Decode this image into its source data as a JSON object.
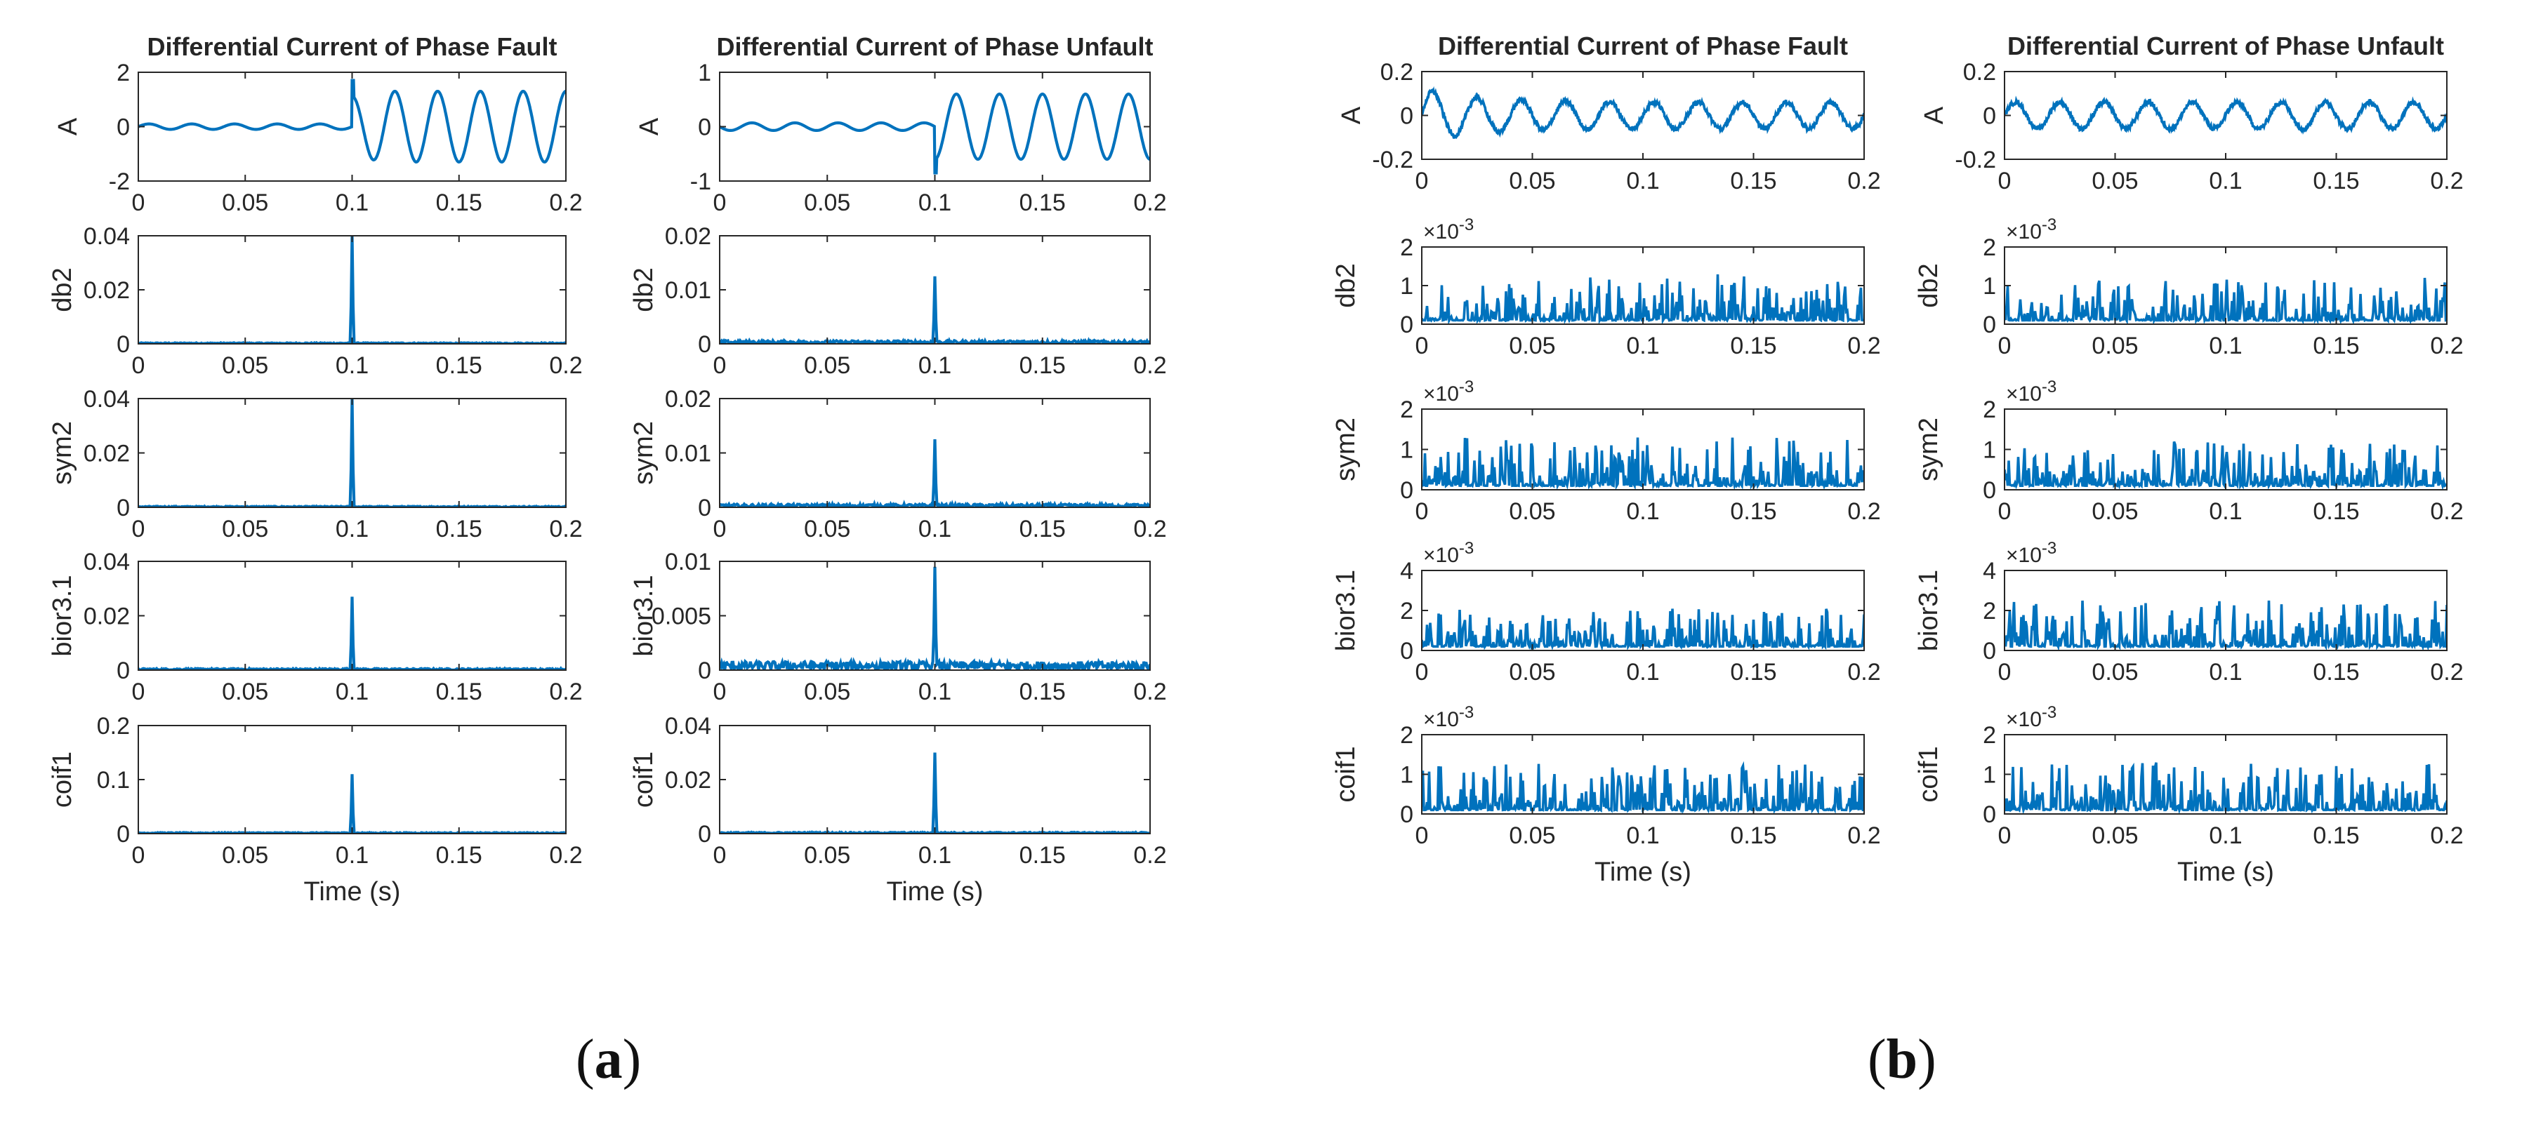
{
  "panel_labels": {
    "a": "a",
    "b": "b"
  },
  "line_color": "#0072BD",
  "chart_data": [
    {
      "panel": "a",
      "type": "line",
      "title": "Differential Current of Phase Fault",
      "ylabel": "A",
      "xlabel": "",
      "xlim": [
        0,
        0.2
      ],
      "ylim": [
        -2,
        2
      ],
      "yticks": [
        "-2",
        "0",
        "2"
      ],
      "xticks": [
        "0",
        "0.05",
        "0.1",
        "0.15",
        "0.2"
      ],
      "exponent": "",
      "signal": "sine-fault",
      "amplitude_pre": 0.1,
      "amplitude_post": 1.3,
      "event_x": 0.1,
      "peak_y": 1.7
    },
    {
      "panel": "a",
      "type": "line",
      "title": "",
      "ylabel": "db2",
      "xlabel": "",
      "xlim": [
        0,
        0.2
      ],
      "ylim": [
        0,
        0.04
      ],
      "yticks": [
        "0",
        "0.02",
        "0.04"
      ],
      "xticks": [
        "0",
        "0.05",
        "0.1",
        "0.15",
        "0.2"
      ],
      "exponent": "",
      "signal": "spike",
      "spike_x": 0.1,
      "spike_y": 0.04,
      "noise": 0.0004
    },
    {
      "panel": "a",
      "type": "line",
      "title": "",
      "ylabel": "sym2",
      "xlabel": "",
      "xlim": [
        0,
        0.2
      ],
      "ylim": [
        0,
        0.04
      ],
      "yticks": [
        "0",
        "0.02",
        "0.04"
      ],
      "xticks": [
        "0",
        "0.05",
        "0.1",
        "0.15",
        "0.2"
      ],
      "exponent": "",
      "signal": "spike",
      "spike_x": 0.1,
      "spike_y": 0.04,
      "noise": 0.0004
    },
    {
      "panel": "a",
      "type": "line",
      "title": "",
      "ylabel": "bior3.1",
      "xlabel": "",
      "xlim": [
        0,
        0.2
      ],
      "ylim": [
        0,
        0.04
      ],
      "yticks": [
        "0",
        "0.02",
        "0.04"
      ],
      "xticks": [
        "0",
        "0.05",
        "0.1",
        "0.15",
        "0.2"
      ],
      "exponent": "",
      "signal": "spike",
      "spike_x": 0.1,
      "spike_y": 0.027,
      "noise": 0.0006
    },
    {
      "panel": "a",
      "type": "line",
      "title": "",
      "ylabel": "coif1",
      "xlabel": "Time (s)",
      "xlim": [
        0,
        0.2
      ],
      "ylim": [
        0,
        0.2
      ],
      "yticks": [
        "0",
        "0.1",
        "0.2"
      ],
      "xticks": [
        "0",
        "0.05",
        "0.1",
        "0.15",
        "0.2"
      ],
      "exponent": "",
      "signal": "spike",
      "spike_x": 0.1,
      "spike_y": 0.11,
      "noise": 0.002
    },
    {
      "panel": "a",
      "type": "line",
      "title": "Differential Current of Phase Unfault",
      "ylabel": "A",
      "xlabel": "",
      "xlim": [
        0,
        0.2
      ],
      "ylim": [
        -1,
        1
      ],
      "yticks": [
        "-1",
        "0",
        "1"
      ],
      "xticks": [
        "0",
        "0.05",
        "0.1",
        "0.15",
        "0.2"
      ],
      "exponent": "",
      "signal": "sine-unfault",
      "amplitude_pre": 0.07,
      "amplitude_post": 0.6,
      "event_x": 0.1,
      "peak_y": -0.85
    },
    {
      "panel": "a",
      "type": "line",
      "title": "",
      "ylabel": "db2",
      "xlabel": "",
      "xlim": [
        0,
        0.2
      ],
      "ylim": [
        0,
        0.02
      ],
      "yticks": [
        "0",
        "0.01",
        "0.02"
      ],
      "xticks": [
        "0",
        "0.05",
        "0.1",
        "0.15",
        "0.2"
      ],
      "exponent": "",
      "signal": "spike",
      "spike_x": 0.1,
      "spike_y": 0.0125,
      "noise": 0.0006
    },
    {
      "panel": "a",
      "type": "line",
      "title": "",
      "ylabel": "sym2",
      "xlabel": "",
      "xlim": [
        0,
        0.2
      ],
      "ylim": [
        0,
        0.02
      ],
      "yticks": [
        "0",
        "0.01",
        "0.02"
      ],
      "xticks": [
        "0",
        "0.05",
        "0.1",
        "0.15",
        "0.2"
      ],
      "exponent": "",
      "signal": "spike",
      "spike_x": 0.1,
      "spike_y": 0.0125,
      "noise": 0.0006
    },
    {
      "panel": "a",
      "type": "line",
      "title": "",
      "ylabel": "bior3.1",
      "xlabel": "",
      "xlim": [
        0,
        0.2
      ],
      "ylim": [
        0,
        0.01
      ],
      "yticks": [
        "0",
        "0.005",
        "0.01"
      ],
      "xticks": [
        "0",
        "0.05",
        "0.1",
        "0.15",
        "0.2"
      ],
      "exponent": "",
      "signal": "spike",
      "spike_x": 0.1,
      "spike_y": 0.0095,
      "noise": 0.0008
    },
    {
      "panel": "a",
      "type": "line",
      "title": "",
      "ylabel": "coif1",
      "xlabel": "Time (s)",
      "xlim": [
        0,
        0.2
      ],
      "ylim": [
        0,
        0.04
      ],
      "yticks": [
        "0",
        "0.02",
        "0.04"
      ],
      "xticks": [
        "0",
        "0.05",
        "0.1",
        "0.15",
        "0.2"
      ],
      "exponent": "",
      "signal": "spike",
      "spike_x": 0.1,
      "spike_y": 0.03,
      "noise": 0.0005
    },
    {
      "panel": "b",
      "type": "line",
      "title": "Differential Current of Phase Fault",
      "ylabel": "A",
      "xlabel": "",
      "xlim": [
        0,
        0.2
      ],
      "ylim": [
        -0.2,
        0.2
      ],
      "yticks": [
        "-0.2",
        "0",
        "0.2"
      ],
      "xticks": [
        "0",
        "0.05",
        "0.1",
        "0.15",
        "0.2"
      ],
      "exponent": "",
      "signal": "sine-small",
      "amplitude": 0.06,
      "first_peak_y": 0.12
    },
    {
      "panel": "b",
      "type": "line",
      "title": "",
      "ylabel": "db2",
      "xlabel": "",
      "xlim": [
        0,
        0.2
      ],
      "ylim": [
        0,
        0.002
      ],
      "yticks": [
        "0",
        "1",
        "2"
      ],
      "xticks": [
        "0",
        "0.05",
        "0.1",
        "0.15",
        "0.2"
      ],
      "exponent": "-3",
      "signal": "noise",
      "noise_base": 0.0001,
      "noise_max": 0.0013
    },
    {
      "panel": "b",
      "type": "line",
      "title": "",
      "ylabel": "sym2",
      "xlabel": "",
      "xlim": [
        0,
        0.2
      ],
      "ylim": [
        0,
        0.002
      ],
      "yticks": [
        "0",
        "1",
        "2"
      ],
      "xticks": [
        "0",
        "0.05",
        "0.1",
        "0.15",
        "0.2"
      ],
      "exponent": "-3",
      "signal": "noise",
      "noise_base": 0.0001,
      "noise_max": 0.0013
    },
    {
      "panel": "b",
      "type": "line",
      "title": "",
      "ylabel": "bior3.1",
      "xlabel": "",
      "xlim": [
        0,
        0.2
      ],
      "ylim": [
        0,
        0.004
      ],
      "yticks": [
        "0",
        "2",
        "4"
      ],
      "xticks": [
        "0",
        "0.05",
        "0.1",
        "0.15",
        "0.2"
      ],
      "exponent": "-3",
      "signal": "noise",
      "noise_base": 0.0002,
      "noise_max": 0.0021
    },
    {
      "panel": "b",
      "type": "line",
      "title": "",
      "ylabel": "coif1",
      "xlabel": "Time (s)",
      "xlim": [
        0,
        0.2
      ],
      "ylim": [
        0,
        0.002
      ],
      "yticks": [
        "0",
        "1",
        "2"
      ],
      "xticks": [
        "0",
        "0.05",
        "0.1",
        "0.15",
        "0.2"
      ],
      "exponent": "-3",
      "signal": "noise",
      "noise_base": 0.0001,
      "noise_max": 0.0013
    },
    {
      "panel": "b",
      "type": "line",
      "title": "Differential Current of Phase Unfault",
      "ylabel": "A",
      "xlabel": "",
      "xlim": [
        0,
        0.2
      ],
      "ylim": [
        -0.2,
        0.2
      ],
      "yticks": [
        "-0.2",
        "0",
        "0.2"
      ],
      "xticks": [
        "0",
        "0.05",
        "0.1",
        "0.15",
        "0.2"
      ],
      "exponent": "",
      "signal": "sine-small",
      "amplitude": 0.06,
      "first_peak_y": 0.06
    },
    {
      "panel": "b",
      "type": "line",
      "title": "",
      "ylabel": "db2",
      "xlabel": "",
      "xlim": [
        0,
        0.2
      ],
      "ylim": [
        0,
        0.002
      ],
      "yticks": [
        "0",
        "1",
        "2"
      ],
      "xticks": [
        "0",
        "0.05",
        "0.1",
        "0.15",
        "0.2"
      ],
      "exponent": "-3",
      "signal": "noise",
      "noise_base": 0.0001,
      "noise_max": 0.0012
    },
    {
      "panel": "b",
      "type": "line",
      "title": "",
      "ylabel": "sym2",
      "xlabel": "",
      "xlim": [
        0,
        0.2
      ],
      "ylim": [
        0,
        0.002
      ],
      "yticks": [
        "0",
        "1",
        "2"
      ],
      "xticks": [
        "0",
        "0.05",
        "0.1",
        "0.15",
        "0.2"
      ],
      "exponent": "-3",
      "signal": "noise",
      "noise_base": 0.0001,
      "noise_max": 0.0012
    },
    {
      "panel": "b",
      "type": "line",
      "title": "",
      "ylabel": "bior3.1",
      "xlabel": "",
      "xlim": [
        0,
        0.2
      ],
      "ylim": [
        0,
        0.004
      ],
      "yticks": [
        "0",
        "2",
        "4"
      ],
      "xticks": [
        "0",
        "0.05",
        "0.1",
        "0.15",
        "0.2"
      ],
      "exponent": "-3",
      "signal": "noise",
      "noise_base": 0.0002,
      "noise_max": 0.0025
    },
    {
      "panel": "b",
      "type": "line",
      "title": "",
      "ylabel": "coif1",
      "xlabel": "Time (s)",
      "xlim": [
        0,
        0.2
      ],
      "ylim": [
        0,
        0.002
      ],
      "yticks": [
        "0",
        "1",
        "2"
      ],
      "xticks": [
        "0",
        "0.05",
        "0.1",
        "0.15",
        "0.2"
      ],
      "exponent": "-3",
      "signal": "noise",
      "noise_base": 0.0001,
      "noise_max": 0.0013
    }
  ]
}
